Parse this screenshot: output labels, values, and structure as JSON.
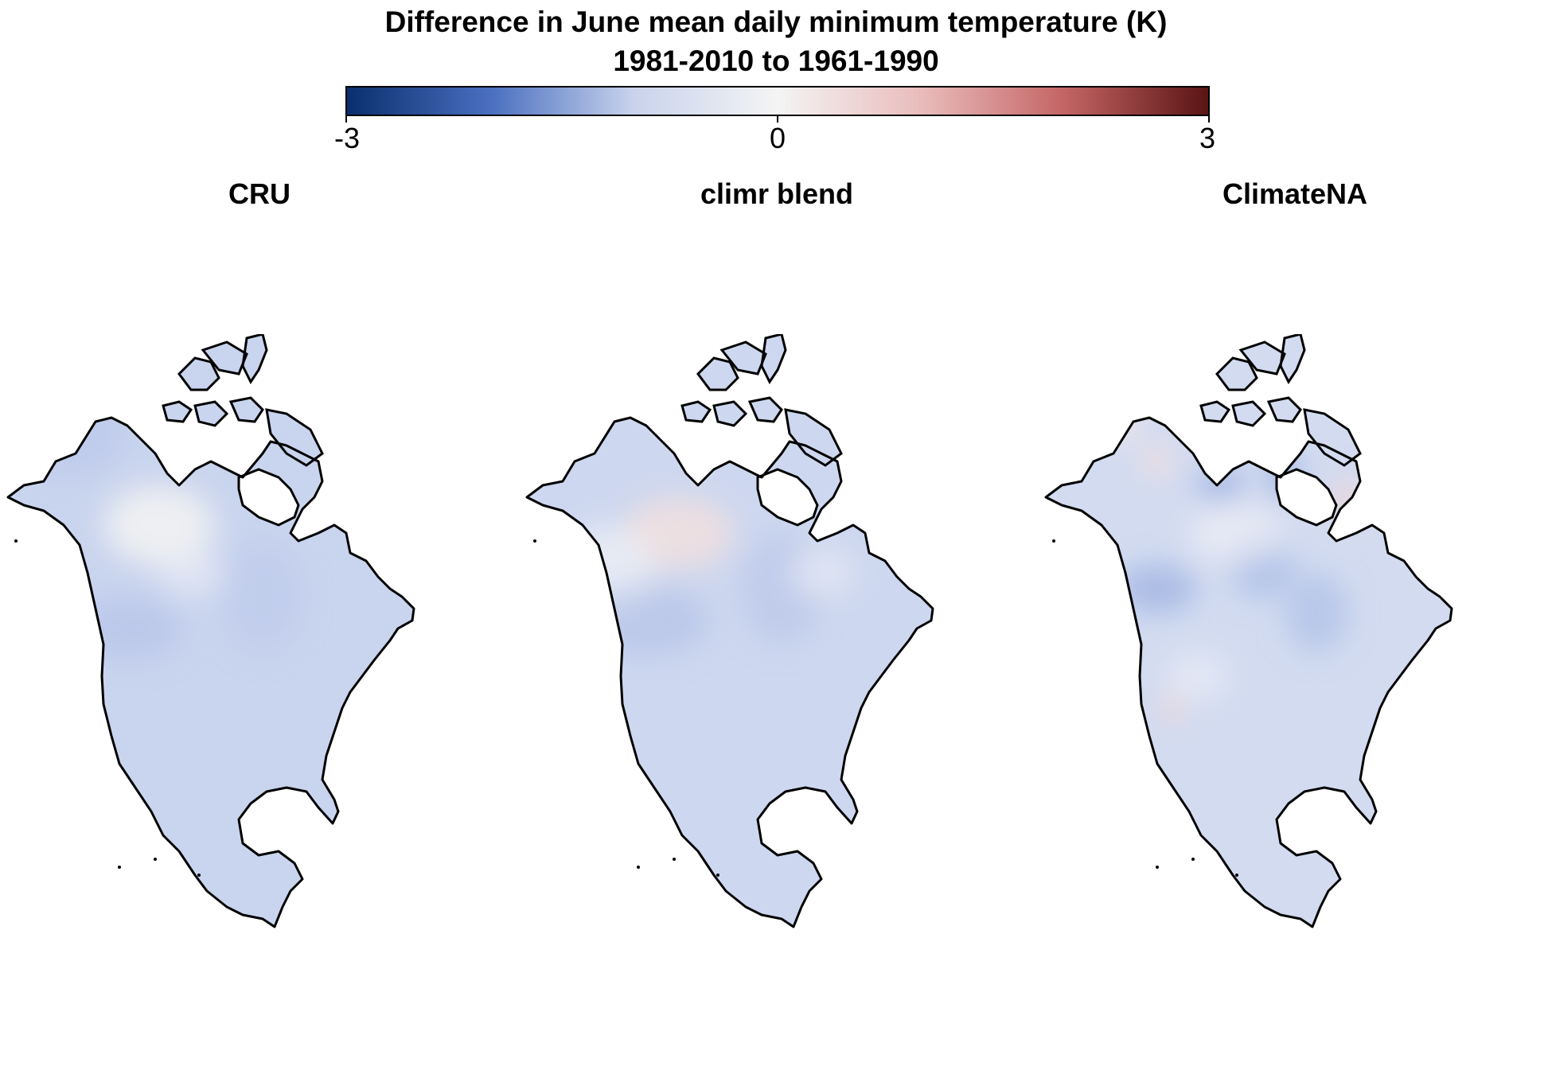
{
  "title": {
    "line1": "Difference in June mean daily minimum temperature (K)",
    "line2": "1981-2010 to 1961-1990"
  },
  "colorbar": {
    "min_label": "-3",
    "mid_label": "0",
    "max_label": "3",
    "min": -3,
    "max": 3,
    "colors": [
      "#0a2f6e",
      "#4a6fbf",
      "#c9d3ec",
      "#f4f4f4",
      "#e9bcbc",
      "#c46464",
      "#5a1414"
    ]
  },
  "panels": [
    {
      "title": "CRU",
      "base_color": "#c9d4ee"
    },
    {
      "title": "climr blend",
      "base_color": "#cdd7ef"
    },
    {
      "title": "ClimateNA",
      "base_color": "#d2dbf0"
    }
  ]
}
